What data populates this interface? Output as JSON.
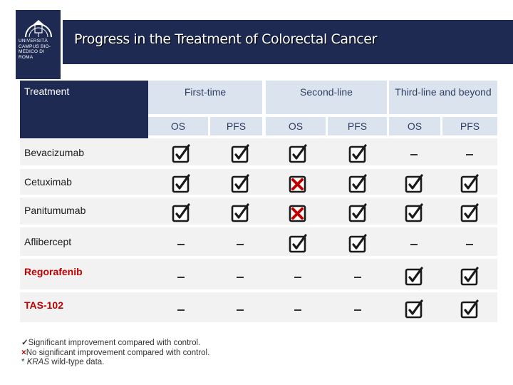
{
  "title": "Progress in the Treatment of Colorectal Cancer",
  "logo": {
    "text": "UNIVERSITÀ CAMPUS BIO-MEDICO DI ROMA"
  },
  "table": {
    "treatment_header": "Treatment",
    "line_headers": [
      "First-time",
      "Second-line",
      "Third-line  and beyond"
    ],
    "sub_headers": [
      "OS",
      "PFS",
      "OS",
      "PFS",
      "OS",
      "PFS"
    ],
    "rows": [
      {
        "drug": "Bevacizumab",
        "highlight": false,
        "cells": [
          "check",
          "check",
          "check",
          "check",
          "dash",
          "dash"
        ]
      },
      {
        "drug": "Cetuximab",
        "highlight": false,
        "cells": [
          "check",
          "check",
          "x",
          "check",
          "check",
          "check"
        ]
      },
      {
        "drug": "Panitumumab",
        "highlight": false,
        "cells": [
          "check",
          "check",
          "x",
          "check",
          "check",
          "check"
        ]
      },
      {
        "drug": "Aflibercept",
        "highlight": false,
        "cells": [
          "dash",
          "dash",
          "check",
          "check",
          "dash",
          "dash"
        ]
      },
      {
        "drug": "Regorafenib",
        "highlight": true,
        "cells": [
          "dash",
          "dash",
          "dash",
          "dash",
          "check",
          "check"
        ]
      },
      {
        "drug": "TAS-102",
        "highlight": true,
        "cells": [
          "dash",
          "dash",
          "dash",
          "dash",
          "check",
          "check"
        ]
      }
    ]
  },
  "legend": {
    "check_symbol": "✓",
    "check_text": "Significant improvement compared with control.",
    "x_symbol": "×",
    "x_text": "No significant improvement compared with control.",
    "star_symbol": "*",
    "star_italic": "KRAS",
    "star_text": " wild-type data."
  },
  "colors": {
    "navy": "#1e2a52",
    "header_light": "#dbe3ee",
    "row_bg": "#f2f2f2",
    "red": "#c00000"
  }
}
